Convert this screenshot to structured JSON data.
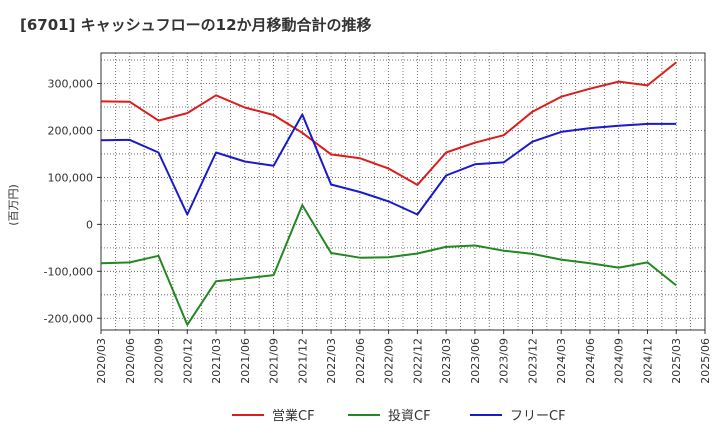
{
  "chart_data": {
    "type": "line",
    "title": "[6701]  キャッシュフローの12か月移動合計の推移",
    "ylabel": "(百万円)",
    "xlabel": "",
    "ylim": [
      -225000,
      365000
    ],
    "yticks": [
      -200000,
      -100000,
      0,
      100000,
      200000,
      300000
    ],
    "ytick_labels": [
      "-200,000",
      "-100,000",
      "0",
      "100,000",
      "200,000",
      "300,000"
    ],
    "grid": true,
    "legend_position": "bottom",
    "categories": [
      "2020/03",
      "2020/06",
      "2020/09",
      "2020/12",
      "2021/03",
      "2021/06",
      "2021/09",
      "2021/12",
      "2022/03",
      "2022/06",
      "2022/09",
      "2022/12",
      "2023/03",
      "2023/06",
      "2023/09",
      "2023/12",
      "2024/03",
      "2024/06",
      "2024/09",
      "2024/12",
      "2025/03",
      "2025/06"
    ],
    "series": [
      {
        "name": "営業CF",
        "color": "#dd1c1c",
        "values": [
          262000,
          261000,
          221000,
          237000,
          275000,
          249000,
          233000,
          195000,
          149000,
          141000,
          119000,
          84000,
          153000,
          174000,
          190000,
          240000,
          272000,
          289000,
          304000,
          296000,
          345000,
          null
        ]
      },
      {
        "name": "投資CF",
        "color": "#228822",
        "values": [
          -83000,
          -81000,
          -67000,
          -214000,
          -121000,
          -115000,
          -108000,
          41000,
          -61000,
          -71000,
          -70000,
          -62000,
          -48000,
          -45000,
          -56000,
          -63000,
          -75000,
          -83000,
          -92000,
          -81000,
          -130000,
          null
        ]
      },
      {
        "name": "フリーCF",
        "color": "#1a1acc",
        "values": [
          179000,
          180000,
          153000,
          21000,
          153000,
          134000,
          125000,
          234000,
          85000,
          69000,
          49000,
          21000,
          104000,
          128000,
          132000,
          176000,
          197000,
          205000,
          210000,
          214000,
          214000,
          null
        ]
      }
    ]
  }
}
